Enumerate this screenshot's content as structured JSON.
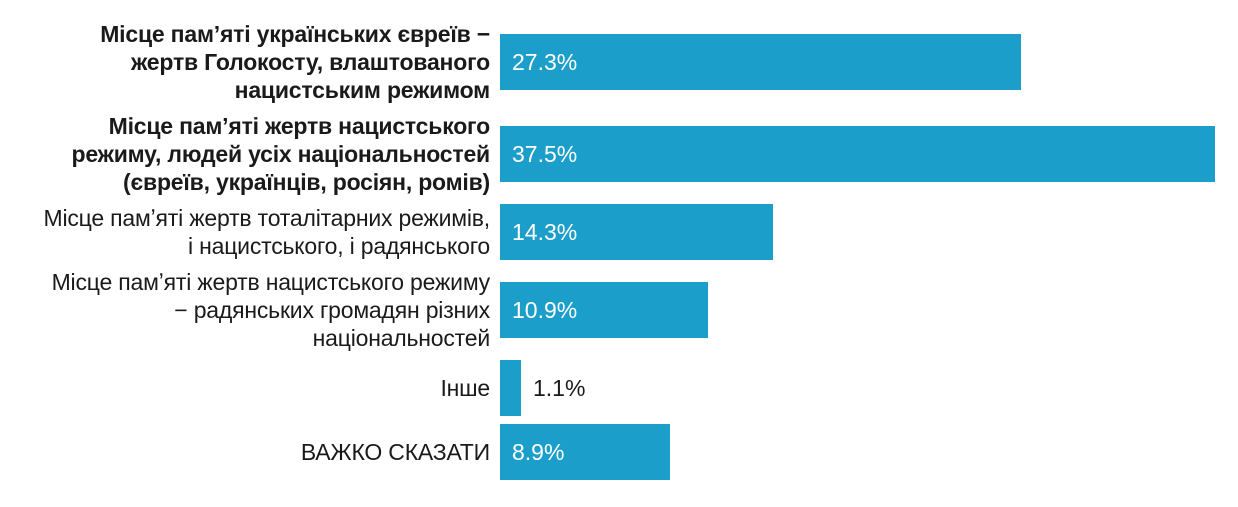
{
  "chart_data": {
    "type": "bar",
    "orientation": "horizontal",
    "title": "",
    "xlabel": "",
    "ylabel": "",
    "categories": [
      "Місце памʼяті українських євреїв −\nжертв Голокосту, влаштованого\nнацистським режимом",
      "Місце памʼяті жертв нацистського\nрежиму, людей усіх національностей\n(євреїв, українців, росіян, ромів)",
      "Місце памʼяті жертв тоталітарних режимів,\nі нацистського, і радянського",
      "Місце памʼяті жертв нацистського режиму\n− радянських громадян різних\nнаціональностей",
      "Інше",
      "ВАЖКО СКАЗАТИ"
    ],
    "values": [
      27.3,
      37.5,
      14.3,
      10.9,
      1.1,
      8.9
    ],
    "value_labels": [
      "27.3%",
      "37.5%",
      "14.3%",
      "10.9%",
      "1.1%",
      "8.9%"
    ],
    "emphasized": [
      true,
      true,
      false,
      false,
      false,
      false
    ],
    "xlim": [
      0,
      38.7
    ],
    "grid": false,
    "legend": false,
    "axes_visible": false,
    "bar_color": "#1B9EC9",
    "label_color": "#1A1A1A",
    "value_label_inside_color": "#FFFFFF",
    "value_label_outside_color": "#1A1A1A"
  }
}
